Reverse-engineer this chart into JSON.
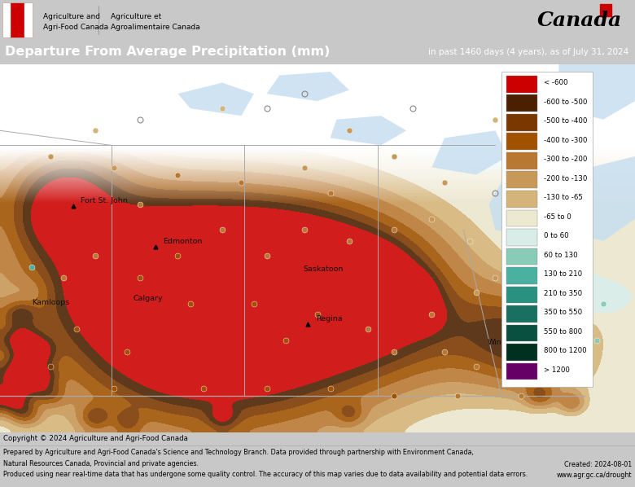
{
  "title": "Departure From Average Precipitation (mm)",
  "subtitle": "in past 1460 days (4 years), as of July 31, 2024",
  "header_bg": "#636363",
  "header_text_color": "#ffffff",
  "map_bg_water": "#c8dff0",
  "map_bg_land": "#f5f0e8",
  "footer_text_left": "Prepared by Agriculture and Agri-Food Canada's Science and Technology Branch. Data provided through partnership with Environment Canada,\nNatural Resources Canada, Provincial and private agencies.\nProduced using near real-time data that has undergone some quality control. The accuracy of this map varies due to data availability and potential data errors.",
  "footer_text_right": "Created: 2024-08-01\nwww.agr.gc.ca/drought",
  "copyright_text": "Copyright © 2024 Agriculture and Agri-Food Canada",
  "legend_labels": [
    "< -600",
    "-600 to -500",
    "-500 to -400",
    "-400 to -300",
    "-300 to -200",
    "-200 to -130",
    "-130 to -65",
    "-65 to 0",
    "0 to 60",
    "60 to 130",
    "130 to 210",
    "210 to 350",
    "350 to 550",
    "550 to 800",
    "800 to 1200",
    "> 1200"
  ],
  "legend_colors": [
    "#cc0000",
    "#4a2000",
    "#7a3800",
    "#a05200",
    "#b87832",
    "#c89858",
    "#d4b478",
    "#ede8d0",
    "#d8ede8",
    "#88ccb8",
    "#4ab0a0",
    "#2a9080",
    "#1a7060",
    "#0a5040",
    "#003020",
    "#660066"
  ],
  "fig_width": 7.8,
  "fig_height": 5.98,
  "dpi": 100,
  "agency_line1": "Agriculture and",
  "agency_line2": "Agri-Food Canada",
  "agency_line3": "Agriculture et",
  "agency_line4": "Agroalimentaire Canada"
}
